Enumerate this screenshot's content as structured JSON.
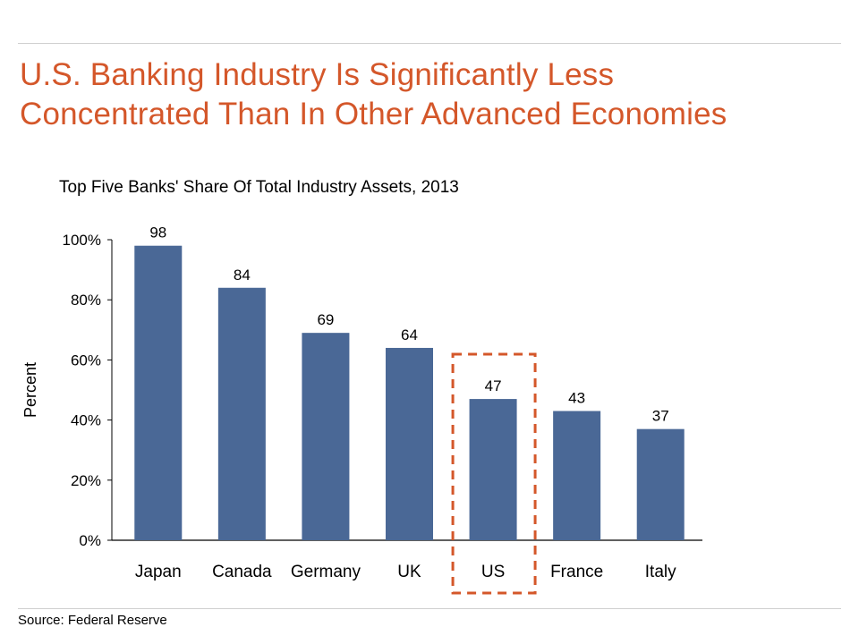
{
  "chart_data": {
    "type": "bar",
    "title": "U.S. Banking Industry Is Significantly Less Concentrated Than In Other Advanced Economies",
    "subtitle": "Top Five Banks' Share Of Total Industry Assets, 2013",
    "ylabel": "Percent",
    "xlabel": "",
    "categories": [
      "Japan",
      "Canada",
      "Germany",
      "UK",
      "US",
      "France",
      "Italy"
    ],
    "values": [
      98,
      84,
      69,
      64,
      47,
      43,
      37
    ],
    "ylim": [
      0,
      100
    ],
    "yticks": [
      0,
      20,
      40,
      60,
      80,
      100
    ],
    "ytick_labels": [
      "0%",
      "20%",
      "40%",
      "60%",
      "80%",
      "100%"
    ],
    "highlighted_category": "US",
    "grid": false,
    "source": "Source: Federal Reserve"
  },
  "colors": {
    "title": "#d4572a",
    "bar": "#4a6896",
    "highlight_box": "#d4572a"
  }
}
